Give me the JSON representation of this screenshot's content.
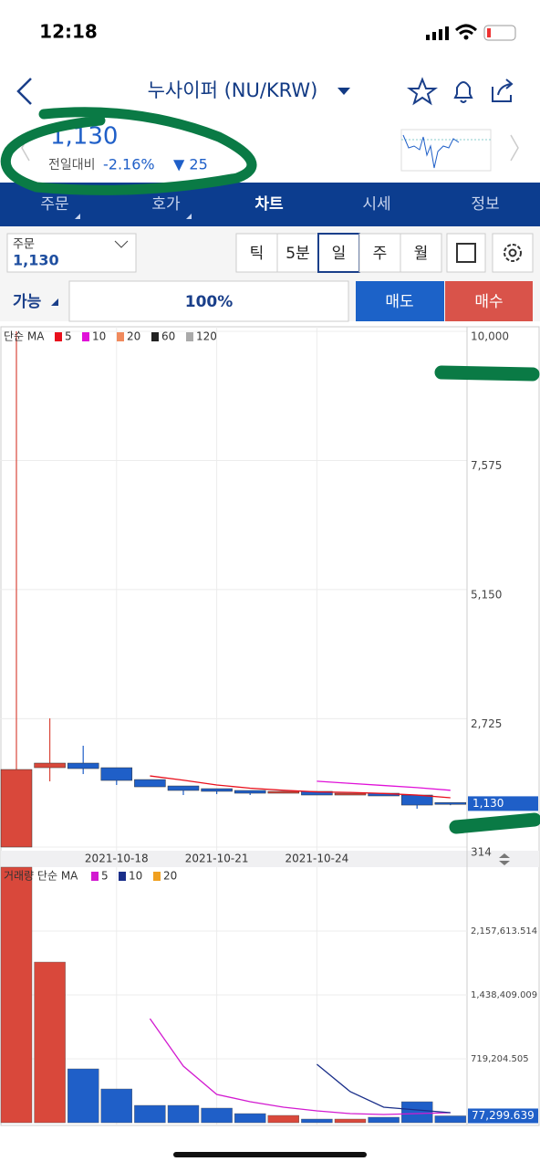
{
  "status_bar": {
    "time": "12:18"
  },
  "header": {
    "title": "누사이퍼 (NU/KRW)"
  },
  "quote": {
    "price": "1,130",
    "change_label": "전일대비",
    "change_percent": "-2.16%",
    "change": "▼ 25"
  },
  "tabs": [
    "주문",
    "호가",
    "차트",
    "시세",
    "정보"
  ],
  "active_tab": 2,
  "order": {
    "label": "주문",
    "price": "1,130"
  },
  "periods": [
    "틱",
    "5분",
    "일",
    "주",
    "월"
  ],
  "active_period": 2,
  "trade": {
    "available": "가능",
    "ratio": "100%",
    "sell": "매도",
    "buy": "매수"
  },
  "price_chart": {
    "type": "candlestick",
    "legend_title": "단순 MA",
    "categories": [
      null,
      null,
      null,
      "2021-10-18",
      null,
      null,
      "2021-10-21",
      null,
      null,
      "2021-10-24",
      null,
      null,
      null,
      null
    ],
    "open": [
      314,
      1805,
      1891,
      1805,
      1582,
      1462,
      1411,
      1377,
      1325,
      1360,
      1291,
      1325,
      1291,
      1150
    ],
    "high": [
      10000,
      2731,
      2217,
      1805,
      1582,
      1462,
      1411,
      1377,
      1360,
      1360,
      1325,
      1325,
      1291,
      1150
    ],
    "low": [
      314,
      1548,
      1685,
      1480,
      1445,
      1291,
      1308,
      1291,
      1325,
      1291,
      1291,
      1274,
      1034,
      1100
    ],
    "close": [
      1771,
      1891,
      1788,
      1565,
      1445,
      1377,
      1360,
      1325,
      1360,
      1291,
      1325,
      1274,
      1102,
      1130
    ],
    "up_color": "#d9483b",
    "down_color": "#1f5fc8",
    "ylim": [
      314,
      10000
    ],
    "yticks": [
      314,
      {
        "value": 2725,
        "label": "2,725"
      },
      {
        "value": 5150,
        "label": "5,150"
      },
      {
        "value": 7575,
        "label": "7,575"
      },
      {
        "value": 10000,
        "label": "10,000"
      }
    ],
    "ma_series": [
      {
        "name": "5",
        "color": "#e8101c",
        "values": [
          null,
          null,
          null,
          null,
          1650,
          1570,
          1480,
          1420,
          1380,
          1350,
          1340,
          1320,
          1290,
          1240
        ]
      },
      {
        "name": "10",
        "color": "#e011d8",
        "values": [
          null,
          null,
          null,
          null,
          null,
          null,
          null,
          null,
          null,
          1550,
          1510,
          1470,
          1430,
          1380
        ]
      },
      {
        "name": "20",
        "color": "#f08a5d",
        "values": []
      },
      {
        "name": "60",
        "color": "#222222",
        "values": []
      },
      {
        "name": "120",
        "color": "#aaaaaa",
        "values": []
      }
    ],
    "current_label": "1,130",
    "current_value": 1130
  },
  "volume_chart": {
    "type": "bar",
    "legend_title": "거래량 단순 MA",
    "values": [
      2876818,
      1808000,
      606200,
      380000,
      195200,
      195200,
      164400,
      102700,
      82200,
      41100,
      41100,
      61600,
      236300,
      77299.639
    ],
    "directions": [
      "up",
      "up",
      "down",
      "down",
      "down",
      "down",
      "down",
      "down",
      "up",
      "down",
      "up",
      "down",
      "down",
      "down"
    ],
    "ylim": [
      0,
      2876818
    ],
    "yticks": [
      {
        "value": 719204.505,
        "label": "719,204.505"
      },
      {
        "value": 1438409.009,
        "label": "1,438,409.009"
      },
      {
        "value": 2157613.514,
        "label": "2,157,613.514"
      }
    ],
    "ma_series": [
      {
        "name": "5",
        "color": "#d21ad0",
        "values": [
          null,
          null,
          null,
          null,
          1171300,
          637000,
          318500,
          236000,
          174700,
          133600,
          102700,
          92500,
          102700,
          113000
        ]
      },
      {
        "name": "10",
        "color": "#1a2f8a",
        "values": [
          null,
          null,
          null,
          null,
          null,
          null,
          null,
          null,
          null,
          657600,
          349300,
          174700,
          143800,
          113000
        ]
      },
      {
        "name": "20",
        "color": "#f0a020",
        "values": []
      }
    ],
    "current_label": "77,299.639",
    "current_value": 77299.639
  }
}
